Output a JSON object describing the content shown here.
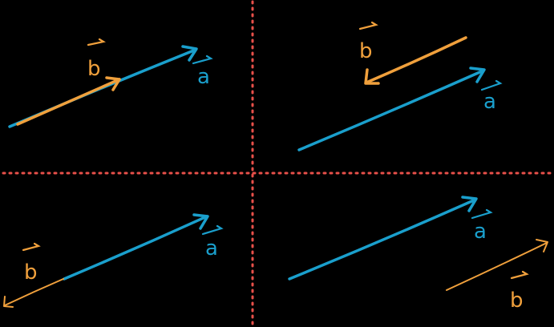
{
  "colors": {
    "background": "#000000",
    "divider": "#e8504a",
    "vector_a": "#1a9fcc",
    "vector_b": "#f0a03c"
  },
  "labels": {
    "vector_a": "a",
    "vector_b": "b"
  },
  "panels": [
    {
      "id": "top-left",
      "arrangement": "b-tail-to-tip-a"
    },
    {
      "id": "top-right",
      "arrangement": "b-opposite-a"
    },
    {
      "id": "bottom-left",
      "arrangement": "b-opposite-from-a-tail"
    },
    {
      "id": "bottom-right",
      "arrangement": "b-parallel-a"
    }
  ]
}
